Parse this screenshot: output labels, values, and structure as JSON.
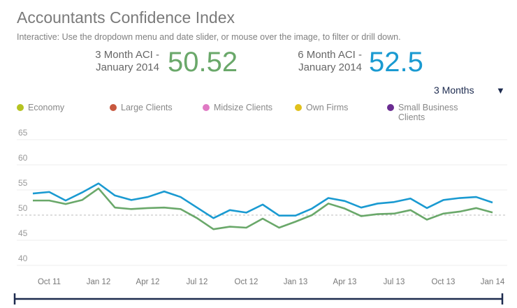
{
  "header": {
    "title": "Accountants Confidence Index",
    "subtitle": "Interactive: Use the dropdown menu and date slider, or mouse over the image, to filter or drill down."
  },
  "kpis": [
    {
      "label_line1": "3 Month ACI -",
      "label_line2": "January 2014",
      "value": "50.52",
      "color": "#6aa86a"
    },
    {
      "label_line1": "6 Month ACI -",
      "label_line2": "January 2014",
      "value": "52.5",
      "color": "#1a9ad1"
    }
  ],
  "dropdown": {
    "selected": "3 Months",
    "icon": "triangle-down"
  },
  "legend": [
    {
      "label": "Economy",
      "color": "#b5c321"
    },
    {
      "label": "Large Clients",
      "color": "#c8583f"
    },
    {
      "label": "Midsize Clients",
      "color": "#e07ac4"
    },
    {
      "label": "Own Firms",
      "color": "#e1c11c"
    },
    {
      "label": "Small Business Clients",
      "color": "#6a2c91"
    }
  ],
  "chart_data": {
    "type": "line",
    "ylim": [
      40,
      65
    ],
    "yticks": [
      "40",
      "45",
      "50",
      "55",
      "60",
      "65"
    ],
    "reference_line": 50,
    "grid": true,
    "xtick_labels": [
      "Oct 11",
      "Jan 12",
      "Apr 12",
      "Jul 12",
      "Oct 12",
      "Jan 13",
      "Apr 13",
      "Jul 13",
      "Oct 13",
      "Jan 14"
    ],
    "x": [
      "Sep 11",
      "Oct 11",
      "Nov 11",
      "Dec 11",
      "Jan 12",
      "Feb 12",
      "Mar 12",
      "Apr 12",
      "May 12",
      "Jun 12",
      "Jul 12",
      "Aug 12",
      "Sep 12",
      "Oct 12",
      "Nov 12",
      "Dec 12",
      "Jan 13",
      "Feb 13",
      "Mar 13",
      "Apr 13",
      "May 13",
      "Jun 13",
      "Jul 13",
      "Aug 13",
      "Sep 13",
      "Oct 13",
      "Nov 13",
      "Dec 13",
      "Jan 14"
    ],
    "series": [
      {
        "color": "#1a9ad1",
        "values": [
          54.3,
          54.6,
          52.9,
          54.5,
          56.3,
          53.9,
          53.0,
          53.6,
          54.7,
          53.6,
          51.5,
          49.4,
          51.0,
          50.5,
          52.1,
          49.9,
          49.9,
          51.3,
          53.4,
          52.8,
          51.5,
          52.3,
          52.6,
          53.3,
          51.4,
          53.0,
          53.4,
          53.6,
          52.5
        ]
      },
      {
        "color": "#6aa86a",
        "values": [
          52.9,
          52.9,
          52.2,
          53.0,
          55.3,
          51.5,
          51.2,
          51.4,
          51.5,
          51.2,
          49.4,
          47.2,
          47.7,
          47.5,
          49.3,
          47.5,
          48.7,
          50.0,
          52.3,
          51.3,
          49.8,
          50.2,
          50.3,
          51.0,
          49.1,
          50.3,
          50.7,
          51.4,
          50.52
        ]
      }
    ]
  }
}
